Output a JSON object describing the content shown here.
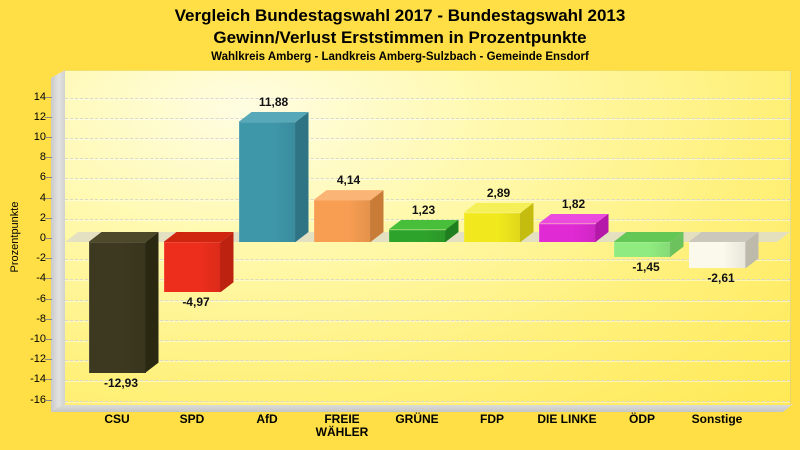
{
  "title": {
    "line1": "Vergleich Bundestagswahl 2017 - Bundestagswahl 2013",
    "line2": "Gewinn/Verlust Erststimmen in Prozentpunkte",
    "subtitle": "Wahlkreis Amberg - Landkreis Amberg-Sulzbach - Gemeinde Ensdorf"
  },
  "chart_data": {
    "type": "bar",
    "title": "Vergleich Bundestagswahl 2017 - Bundestagswahl 2013 — Gewinn/Verlust Erststimmen in Prozentpunkte",
    "subtitle": "Wahlkreis Amberg - Landkreis Amberg-Sulzbach - Gemeinde Ensdorf",
    "categories": [
      "CSU",
      "SPD",
      "AfD",
      "FREIE WÄHLER",
      "GRÜNE",
      "FDP",
      "DIE LINKE",
      "ÖDP",
      "Sonstige"
    ],
    "values": [
      -12.93,
      -4.97,
      11.88,
      4.14,
      1.23,
      2.89,
      1.82,
      -1.45,
      -2.61
    ],
    "value_labels": [
      "-12,93",
      "-4,97",
      "11,88",
      "4,14",
      "1,23",
      "2,89",
      "1,82",
      "-1,45",
      "-2,61"
    ],
    "bar_colors": [
      {
        "name": "CSU",
        "front": "#3d3920",
        "top": "#4d4829",
        "side": "#2b2812"
      },
      {
        "name": "SPD",
        "front": "#ee2e1c",
        "top": "#d0250f",
        "side": "#bd2210"
      },
      {
        "name": "AfD",
        "front": "#3e97a9",
        "top": "#57a9b9",
        "side": "#2e7485"
      },
      {
        "name": "FREIE WÄHLER",
        "front": "#f79e52",
        "top": "#f9b476",
        "side": "#c87c38"
      },
      {
        "name": "GRÜNE",
        "front": "#2ea32b",
        "top": "#47bf3b",
        "side": "#1f7f1e"
      },
      {
        "name": "FDP",
        "front": "#f1e91d",
        "top": "#f6f058",
        "side": "#c4bc0e"
      },
      {
        "name": "DIE LINKE",
        "front": "#e02ad4",
        "top": "#ea4ade",
        "side": "#b517a9"
      },
      {
        "name": "ÖDP",
        "front": "#90ec80",
        "top": "#63c755",
        "side": "#6cc25c"
      },
      {
        "name": "Sonstige",
        "front": "#fbf8ec",
        "top": "#cbc7ba",
        "side": "#bdb9ab"
      }
    ],
    "xlabel": "",
    "ylabel": "Prozentpunkte",
    "ylim": [
      -16,
      16
    ],
    "y_ticks": [
      14,
      12,
      10,
      8,
      6,
      4,
      2,
      0,
      -2,
      -4,
      -6,
      -8,
      -10,
      -12,
      -14,
      -16
    ],
    "grid": true,
    "legend": false,
    "style": "3d-column"
  },
  "colors": {
    "background": "#ffdf45",
    "plot_background": "#fff9ae",
    "wall": "#d9d9d7",
    "zero_plane": "#e2deC4",
    "gridline": "#d8d6c8",
    "text": "#000000"
  }
}
